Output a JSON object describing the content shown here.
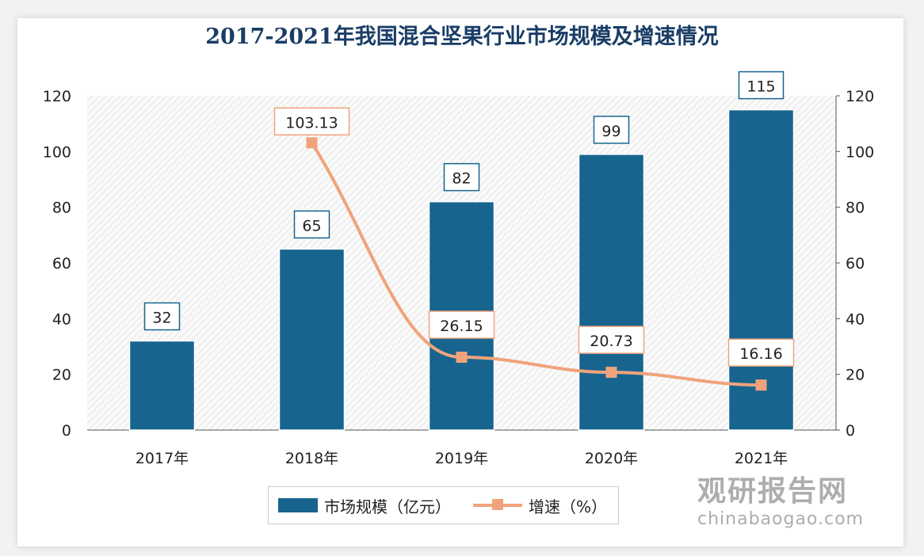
{
  "chart_data": {
    "type": "bar+line",
    "title": "2017-2021年我国混合坚果行业市场规模及增速情况",
    "categories": [
      "2017年",
      "2018年",
      "2019年",
      "2020年",
      "2021年"
    ],
    "series": [
      {
        "name": "市场规模（亿元）",
        "type": "bar",
        "axis": "left",
        "values": [
          32,
          65,
          82,
          99,
          115
        ],
        "color": "#17648f"
      },
      {
        "name": "增速（%）",
        "type": "line",
        "axis": "right",
        "values": [
          null,
          103.13,
          26.15,
          20.73,
          16.16
        ],
        "color": "#f0a37b"
      }
    ],
    "ylim": [
      0,
      120
    ],
    "y2lim": [
      0,
      120
    ],
    "yticks": [
      0,
      20,
      40,
      60,
      80,
      100,
      120
    ],
    "legend": "bottom"
  },
  "watermark": {
    "cn": "观研报告网",
    "en": "chinabaogao.com"
  }
}
